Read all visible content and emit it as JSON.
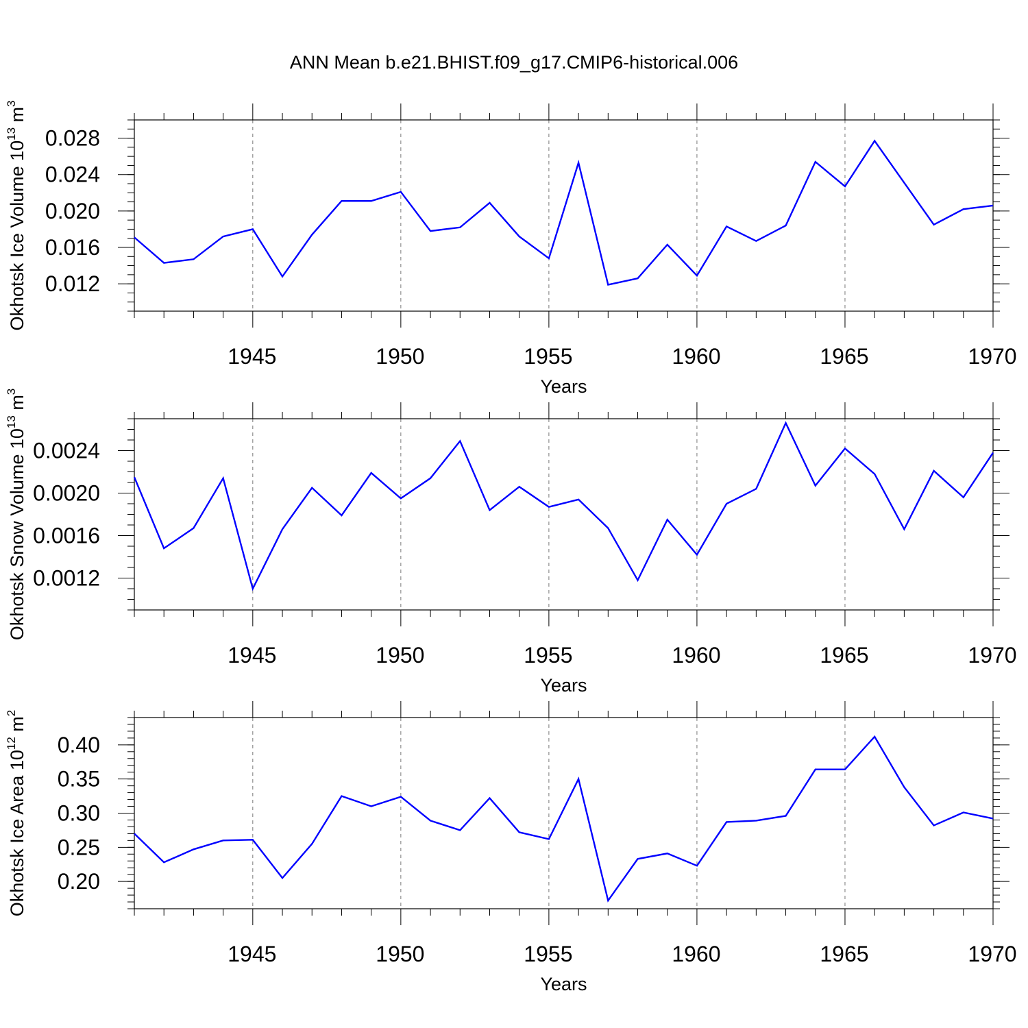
{
  "figure": {
    "title": "ANN Mean b.e21.BHIST.f09_g17.CMIP6-historical.006"
  },
  "colors": {
    "line": "#0000ff",
    "axes": "#000000",
    "grid": "#777777"
  },
  "chart_data": [
    {
      "type": "line",
      "title": "ANN Mean b.e21.BHIST.f09_g17.CMIP6-historical.006",
      "ylabel": "Okhotsk Ice Volume",
      "ylabel_unit_base": "10",
      "ylabel_unit_exp": "13",
      "ylabel_unit": "m",
      "ylabel_unit_power": "3",
      "xlabel": "Years",
      "xlim": [
        1941,
        1970
      ],
      "ylim": [
        0.009,
        0.03
      ],
      "xticks": [
        1945,
        1950,
        1955,
        1960,
        1965,
        1970
      ],
      "yticks": [
        0.012,
        0.016,
        0.02,
        0.024,
        0.028
      ],
      "ytick_labels": [
        "0.012",
        "0.016",
        "0.020",
        "0.024",
        "0.028"
      ],
      "grid": "vertical dashed at major x ticks",
      "x": [
        1941,
        1942,
        1943,
        1944,
        1945,
        1946,
        1947,
        1948,
        1949,
        1950,
        1951,
        1952,
        1953,
        1954,
        1955,
        1956,
        1957,
        1958,
        1959,
        1960,
        1961,
        1962,
        1963,
        1964,
        1965,
        1966,
        1967,
        1968,
        1969,
        1970
      ],
      "series": [
        {
          "name": "Okhotsk Ice Volume",
          "values": [
            0.0171,
            0.0143,
            0.0147,
            0.0172,
            0.018,
            0.0128,
            0.0174,
            0.0211,
            0.0211,
            0.0221,
            0.0178,
            0.0182,
            0.0209,
            0.0172,
            0.0148,
            0.0253,
            0.0119,
            0.0126,
            0.0163,
            0.0129,
            0.0183,
            0.0167,
            0.0184,
            0.0254,
            0.0227,
            0.0277,
            0.0231,
            0.0185,
            0.0202,
            0.0206
          ]
        }
      ]
    },
    {
      "type": "line",
      "ylabel": "Okhotsk Snow Volume",
      "ylabel_unit_base": "10",
      "ylabel_unit_exp": "13",
      "ylabel_unit": "m",
      "ylabel_unit_power": "3",
      "xlabel": "Years",
      "xlim": [
        1941,
        1970
      ],
      "ylim": [
        0.0009,
        0.0027
      ],
      "xticks": [
        1945,
        1950,
        1955,
        1960,
        1965,
        1970
      ],
      "yticks": [
        0.0012,
        0.0016,
        0.002,
        0.0024
      ],
      "ytick_labels": [
        "0.0012",
        "0.0016",
        "0.0020",
        "0.0024"
      ],
      "grid": "vertical dashed at major x ticks",
      "x": [
        1941,
        1942,
        1943,
        1944,
        1945,
        1946,
        1947,
        1948,
        1949,
        1950,
        1951,
        1952,
        1953,
        1954,
        1955,
        1956,
        1957,
        1958,
        1959,
        1960,
        1961,
        1962,
        1963,
        1964,
        1965,
        1966,
        1967,
        1968,
        1969,
        1970
      ],
      "series": [
        {
          "name": "Okhotsk Snow Volume",
          "values": [
            0.00215,
            0.00148,
            0.00167,
            0.00214,
            0.0011,
            0.00166,
            0.00205,
            0.00179,
            0.00219,
            0.00195,
            0.00214,
            0.00249,
            0.00184,
            0.00206,
            0.00187,
            0.00194,
            0.00167,
            0.00118,
            0.00175,
            0.00142,
            0.0019,
            0.00204,
            0.00266,
            0.00207,
            0.00242,
            0.00218,
            0.00166,
            0.00221,
            0.00196,
            0.00238
          ]
        }
      ]
    },
    {
      "type": "line",
      "ylabel": "Okhotsk Ice Area",
      "ylabel_unit_base": "10",
      "ylabel_unit_exp": "12",
      "ylabel_unit": "m",
      "ylabel_unit_power": "2",
      "xlabel": "Years",
      "xlim": [
        1941,
        1970
      ],
      "ylim": [
        0.16,
        0.44
      ],
      "xticks": [
        1945,
        1950,
        1955,
        1960,
        1965,
        1970
      ],
      "yticks": [
        0.2,
        0.25,
        0.3,
        0.35,
        0.4
      ],
      "ytick_labels": [
        "0.20",
        "0.25",
        "0.30",
        "0.35",
        "0.40"
      ],
      "grid": "vertical dashed at major x ticks",
      "x": [
        1941,
        1942,
        1943,
        1944,
        1945,
        1946,
        1947,
        1948,
        1949,
        1950,
        1951,
        1952,
        1953,
        1954,
        1955,
        1956,
        1957,
        1958,
        1959,
        1960,
        1961,
        1962,
        1963,
        1964,
        1965,
        1966,
        1967,
        1968,
        1969,
        1970
      ],
      "series": [
        {
          "name": "Okhotsk Ice Area",
          "values": [
            0.27,
            0.228,
            0.247,
            0.26,
            0.261,
            0.205,
            0.255,
            0.325,
            0.31,
            0.324,
            0.289,
            0.275,
            0.322,
            0.272,
            0.262,
            0.35,
            0.172,
            0.233,
            0.241,
            0.223,
            0.287,
            0.289,
            0.296,
            0.364,
            0.364,
            0.412,
            0.338,
            0.282,
            0.301,
            0.292
          ]
        }
      ]
    }
  ]
}
